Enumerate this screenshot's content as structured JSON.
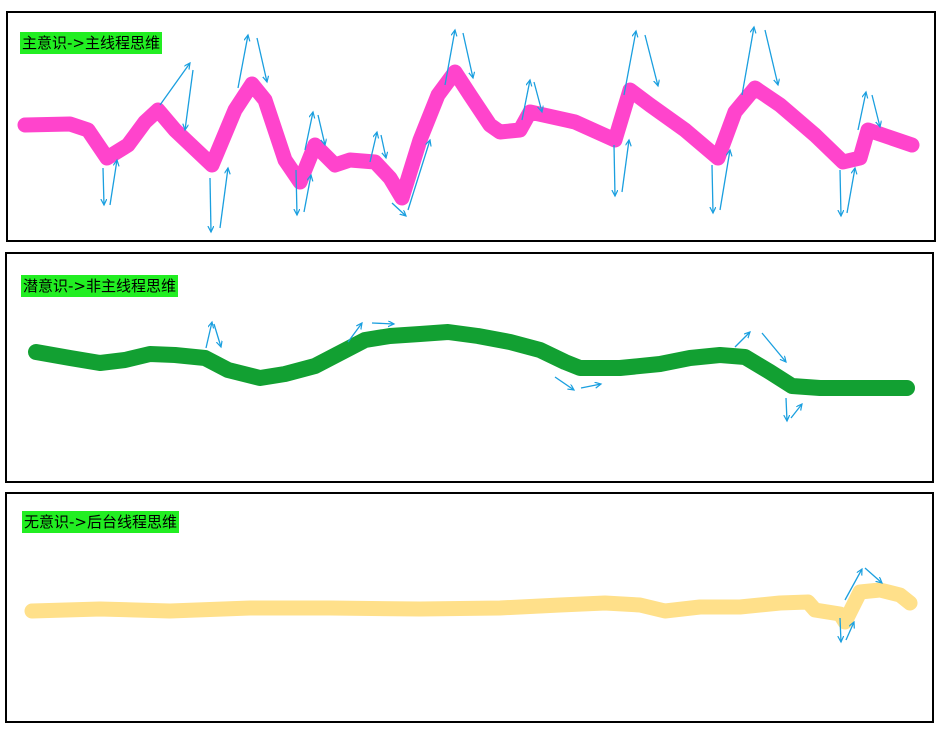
{
  "panels": [
    {
      "label": "主意识->主线程思维",
      "stroke_color": "#ff44cc",
      "arrow_color": "#1a9fdf"
    },
    {
      "label": "潜意识->非主线程思维",
      "stroke_color": "#12a032",
      "arrow_color": "#1a9fdf"
    },
    {
      "label": "无意识->后台线程思维",
      "stroke_color": "#ffe08a",
      "arrow_color": "#1a9fdf"
    }
  ],
  "label_background": "#22ee22"
}
